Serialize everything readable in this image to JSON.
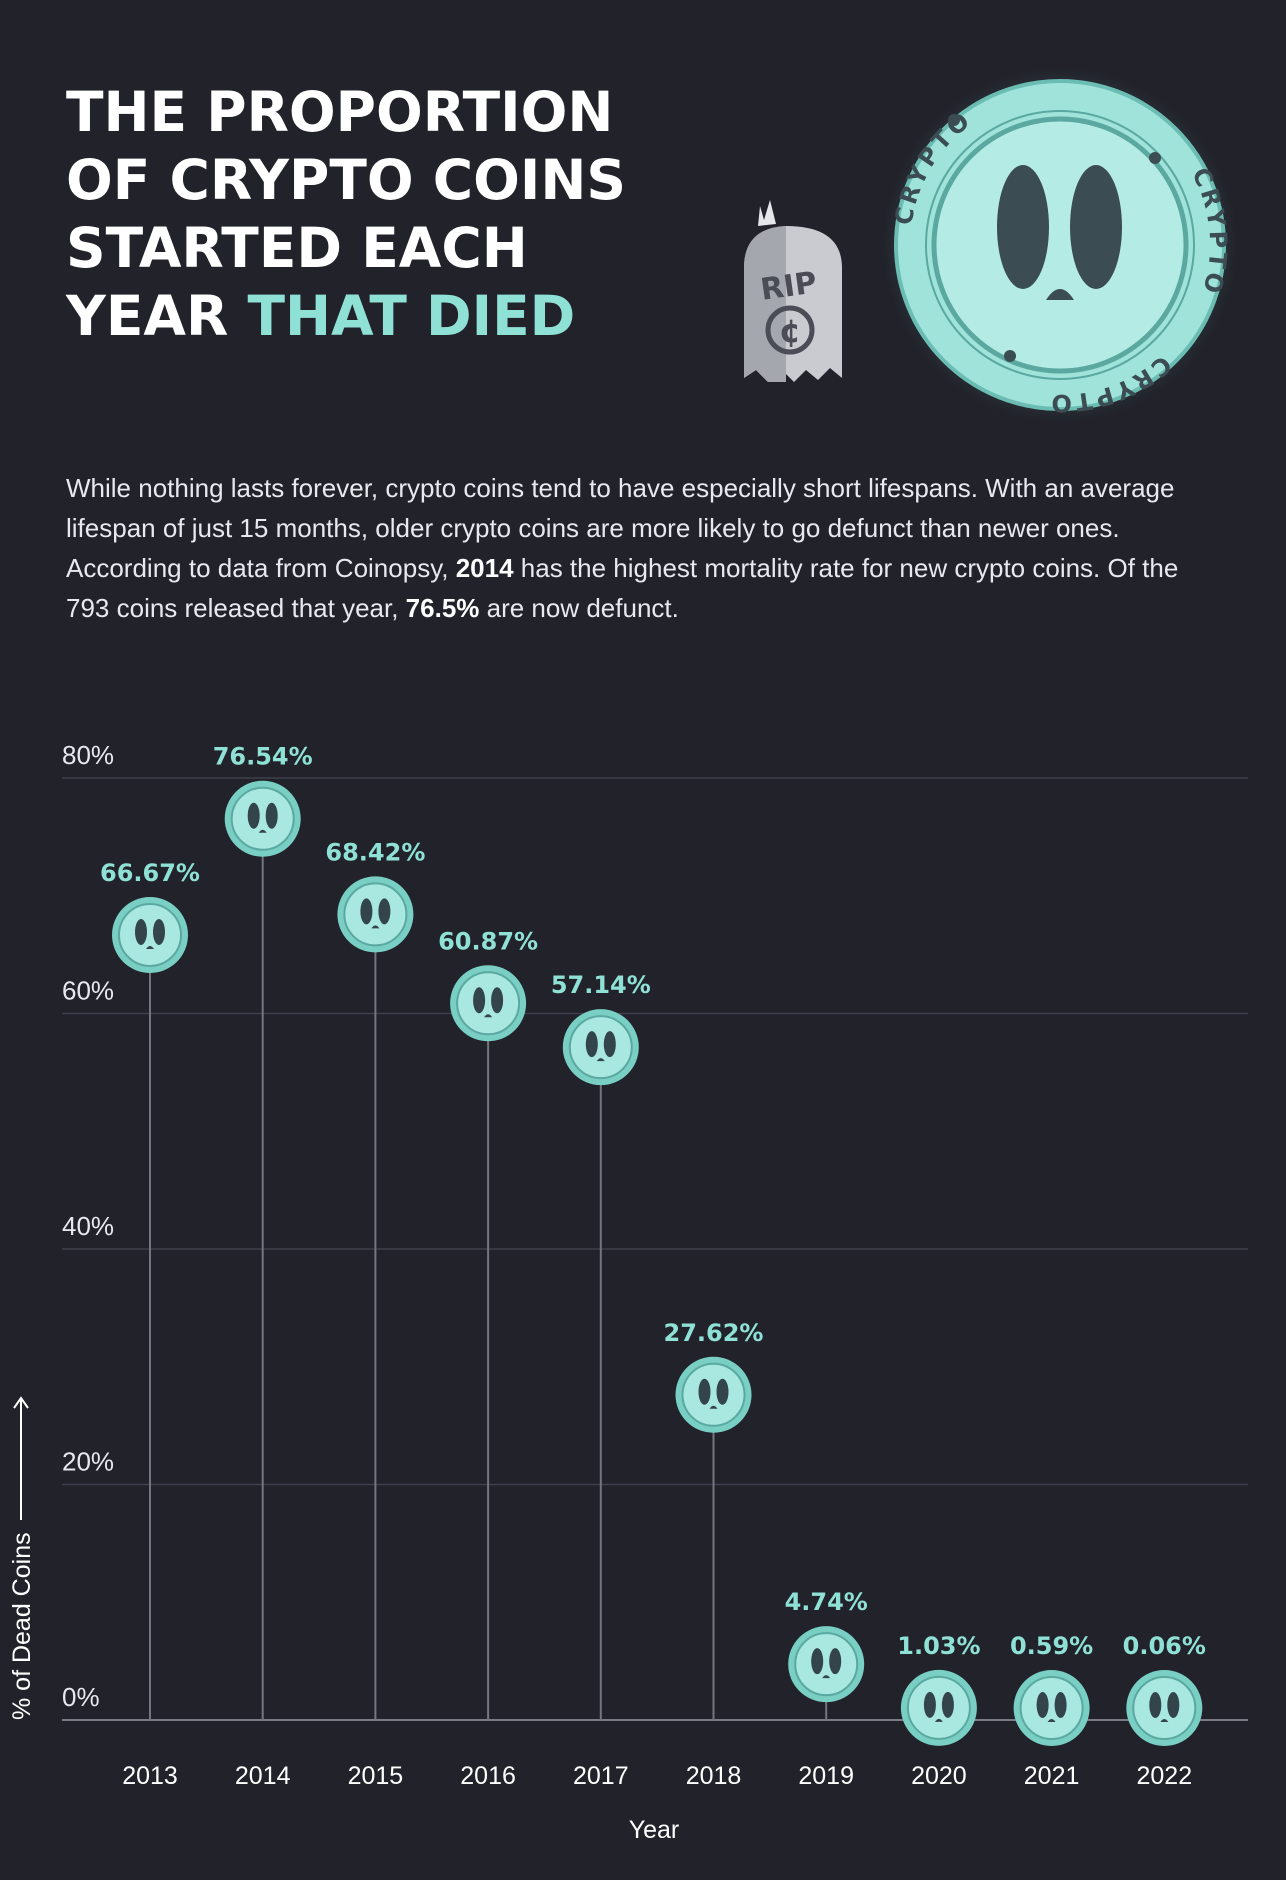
{
  "header": {
    "title_main": "THE PROPORTION OF CRYPTO COINS STARTED EACH YEAR",
    "title_accent": "THAT DIED"
  },
  "illustration": {
    "tombstone_text": "RIP",
    "tombstone_symbol": "¢",
    "coin_ring_text": "CRYPTO"
  },
  "intro": {
    "p1": "While nothing lasts forever, crypto coins tend to have especially short lifespans. With an average lifespan of just 15 months, older crypto coins are more likely to go defunct than newer ones. According to data from Coinopsy, ",
    "b1": "2014",
    "p2": " has the highest mortality rate for new crypto coins. Of the 793 coins released that year, ",
    "b2": "76.5%",
    "p3": " are now defunct."
  },
  "colors": {
    "background": "#21222a",
    "accent": "#8fe1d6",
    "coin_face": "#a8e8e0",
    "coin_ring": "#79cfc4",
    "coin_eye": "#33444a",
    "grid": "#3e3f4a",
    "stem": "#74757e"
  },
  "chart_data": {
    "type": "scatter",
    "x": [
      "2013",
      "2014",
      "2015",
      "2016",
      "2017",
      "2018",
      "2019",
      "2020",
      "2021",
      "2022"
    ],
    "values": [
      66.67,
      76.54,
      68.42,
      60.87,
      57.14,
      27.62,
      4.74,
      1.03,
      0.59,
      0.06
    ],
    "value_labels": [
      "66.67%",
      "76.54%",
      "68.42%",
      "60.87%",
      "57.14%",
      "27.62%",
      "4.74%",
      "1.03%",
      "0.59%",
      "0.06%"
    ],
    "yticks": [
      0,
      20,
      40,
      60,
      80
    ],
    "ytick_labels": [
      "0%",
      "20%",
      "40%",
      "60%",
      "80%"
    ],
    "ylim": [
      0,
      80
    ],
    "xlabel": "Year",
    "ylabel": "% of Dead Coins",
    "grid": true,
    "marker": "ghost-coin-icon"
  }
}
